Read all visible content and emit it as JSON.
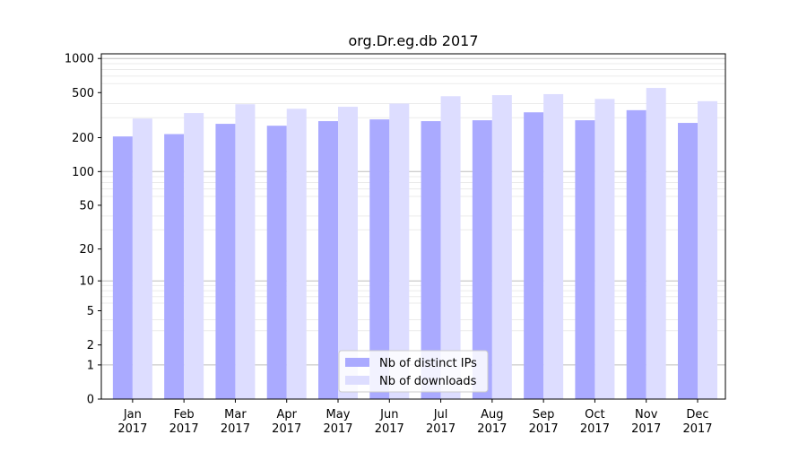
{
  "chart_data": {
    "type": "bar",
    "title": "org.Dr.eg.db 2017",
    "xlabel": "",
    "ylabel": "",
    "yscale": "log(1+y)",
    "ylim": [
      0,
      1100
    ],
    "yticks": [
      0,
      1,
      2,
      5,
      10,
      20,
      50,
      100,
      200,
      500,
      1000
    ],
    "grid": true,
    "legend_position": "lower center",
    "categories": [
      "Jan\n2017",
      "Feb\n2017",
      "Mar\n2017",
      "Apr\n2017",
      "May\n2017",
      "Jun\n2017",
      "Jul\n2017",
      "Aug\n2017",
      "Sep\n2017",
      "Oct\n2017",
      "Nov\n2017",
      "Dec\n2017"
    ],
    "series": [
      {
        "name": "Nb of distinct IPs",
        "color": "#aaaaff",
        "values": [
          205,
          215,
          265,
          255,
          280,
          290,
          280,
          285,
          335,
          285,
          350,
          270
        ]
      },
      {
        "name": "Nb of downloads",
        "color": "#ddddff",
        "values": [
          295,
          330,
          395,
          360,
          375,
          400,
          465,
          475,
          485,
          440,
          550,
          420
        ]
      }
    ]
  }
}
